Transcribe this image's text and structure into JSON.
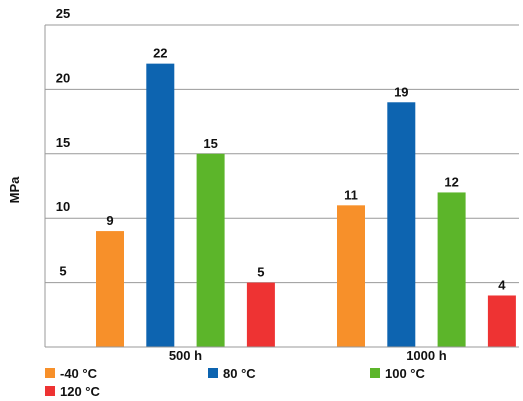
{
  "chart_data": {
    "type": "bar",
    "categories": [
      "500 h",
      "1000 h"
    ],
    "series": [
      {
        "name": "-40 °C",
        "color": "#f7902a",
        "values": [
          9,
          11
        ]
      },
      {
        "name": "80 °C",
        "color": "#0d64b0",
        "values": [
          22,
          19
        ]
      },
      {
        "name": "100 °C",
        "color": "#5cb52a",
        "values": [
          15,
          12
        ]
      },
      {
        "name": "120 °C",
        "color": "#ee3333",
        "values": [
          5,
          4
        ]
      }
    ],
    "ylabel": "MPa",
    "ylim": [
      0,
      25
    ],
    "yticks": [
      "5",
      "10",
      "15",
      "20",
      "25"
    ],
    "grid": true,
    "legend": "bottom"
  }
}
